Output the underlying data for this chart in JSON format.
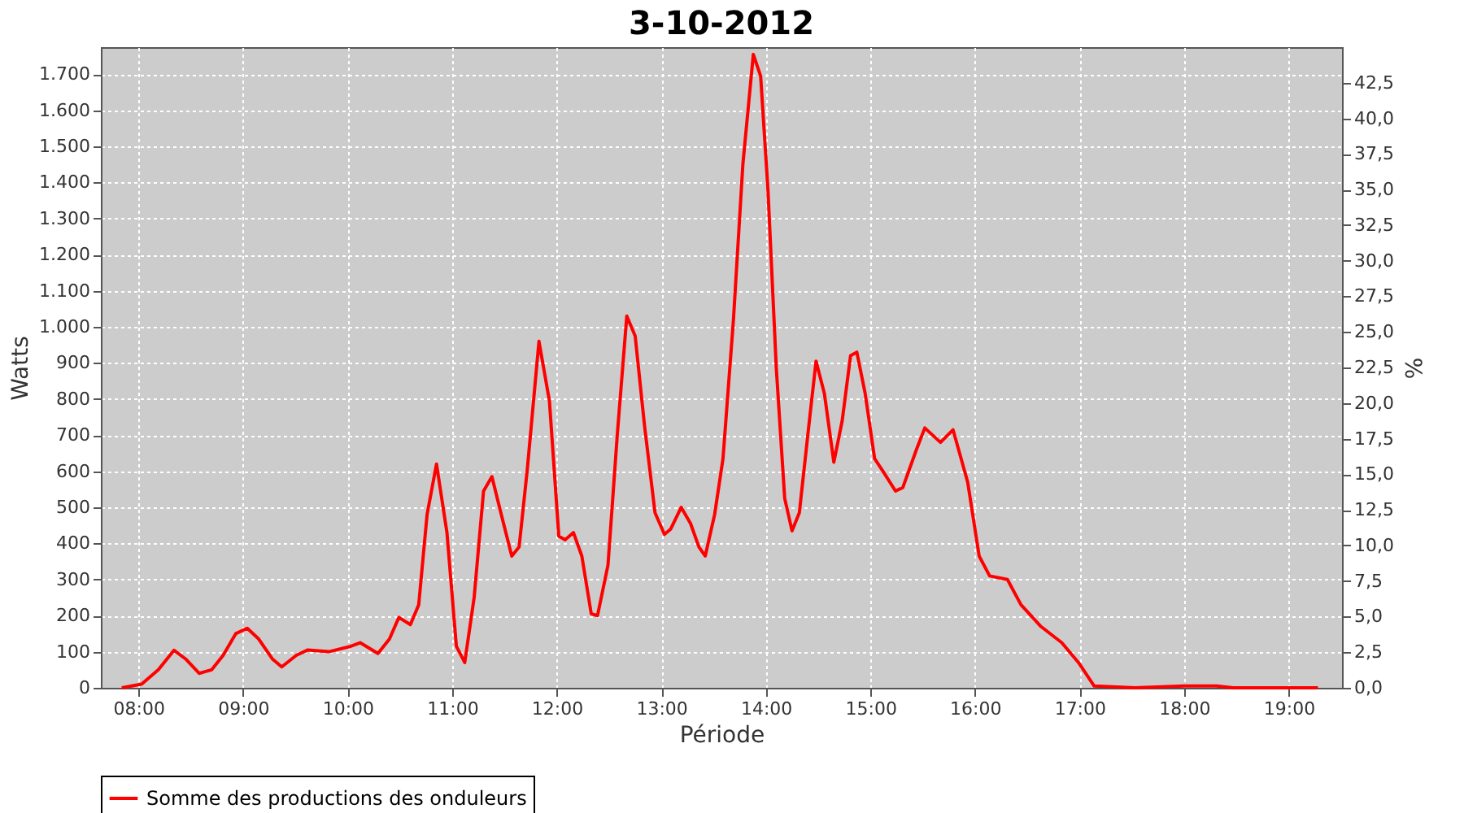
{
  "chart_data": {
    "type": "line",
    "title": "3-10-2012",
    "xlabel": "Période",
    "ylabel": "Watts",
    "y2label": "%",
    "x": [
      7.84,
      8.03,
      8.19,
      8.34,
      8.45,
      8.58,
      8.7,
      8.81,
      8.93,
      9.04,
      9.15,
      9.28,
      9.37,
      9.51,
      9.62,
      9.82,
      10.03,
      10.12,
      10.29,
      10.4,
      10.49,
      10.6,
      10.68,
      10.76,
      10.85,
      10.95,
      11.04,
      11.12,
      11.21,
      11.3,
      11.38,
      11.47,
      11.57,
      11.64,
      11.72,
      11.83,
      11.93,
      12.02,
      12.08,
      12.16,
      12.24,
      12.33,
      12.39,
      12.49,
      12.58,
      12.67,
      12.75,
      12.84,
      12.94,
      13.03,
      13.09,
      13.19,
      13.28,
      13.36,
      13.42,
      13.51,
      13.59,
      13.69,
      13.78,
      13.88,
      13.95,
      14.02,
      14.1,
      14.18,
      14.25,
      14.32,
      14.42,
      14.48,
      14.56,
      14.65,
      14.73,
      14.81,
      14.87,
      14.95,
      15.04,
      15.12,
      15.24,
      15.31,
      15.44,
      15.52,
      15.67,
      15.79,
      15.93,
      16.04,
      16.14,
      16.31,
      16.44,
      16.63,
      16.83,
      16.99,
      17.14,
      17.53,
      18.0,
      18.31,
      18.47,
      19.28
    ],
    "series": [
      {
        "name": "Somme des productions des onduleurs",
        "color": "#ff0000",
        "values": [
          0,
          10,
          50,
          104,
          80,
          40,
          50,
          90,
          150,
          165,
          135,
          80,
          58,
          90,
          105,
          100,
          115,
          125,
          95,
          135,
          195,
          175,
          230,
          480,
          620,
          430,
          115,
          70,
          250,
          545,
          585,
          480,
          365,
          390,
          610,
          960,
          795,
          420,
          410,
          430,
          365,
          205,
          200,
          340,
          705,
          1030,
          975,
          725,
          485,
          425,
          440,
          500,
          455,
          390,
          365,
          480,
          635,
          1020,
          1450,
          1755,
          1695,
          1380,
          885,
          525,
          435,
          485,
          750,
          905,
          815,
          625,
          740,
          920,
          930,
          815,
          635,
          600,
          545,
          555,
          660,
          720,
          680,
          715,
          570,
          365,
          310,
          300,
          230,
          170,
          125,
          70,
          5,
          0,
          5,
          5,
          0,
          0
        ]
      }
    ],
    "xlim": [
      7.64,
      19.51
    ],
    "xticks": [
      {
        "value": 8,
        "label": "08:00"
      },
      {
        "value": 9,
        "label": "09:00"
      },
      {
        "value": 10,
        "label": "10:00"
      },
      {
        "value": 11,
        "label": "11:00"
      },
      {
        "value": 12,
        "label": "12:00"
      },
      {
        "value": 13,
        "label": "13:00"
      },
      {
        "value": 14,
        "label": "14:00"
      },
      {
        "value": 15,
        "label": "15:00"
      },
      {
        "value": 16,
        "label": "16:00"
      },
      {
        "value": 17,
        "label": "17:00"
      },
      {
        "value": 18,
        "label": "18:00"
      },
      {
        "value": 19,
        "label": "19:00"
      }
    ],
    "ylim": [
      0,
      1775
    ],
    "yticks": [
      0,
      100,
      200,
      300,
      400,
      500,
      600,
      700,
      800,
      900,
      {
        "value": 1000,
        "label": "1.000"
      },
      {
        "value": 1100,
        "label": "1.100"
      },
      {
        "value": 1200,
        "label": "1.200"
      },
      {
        "value": 1300,
        "label": "1.300"
      },
      {
        "value": 1400,
        "label": "1.400"
      },
      {
        "value": 1500,
        "label": "1.500"
      },
      {
        "value": 1600,
        "label": "1.600"
      },
      {
        "value": 1700,
        "label": "1.700"
      }
    ],
    "y2lim": [
      0,
      45
    ],
    "y2ticks": [
      {
        "value": 0,
        "label": "0,0"
      },
      {
        "value": 2.5,
        "label": "2,5"
      },
      {
        "value": 5,
        "label": "5,0"
      },
      {
        "value": 7.5,
        "label": "7,5"
      },
      {
        "value": 10,
        "label": "10,0"
      },
      {
        "value": 12.5,
        "label": "12,5"
      },
      {
        "value": 15,
        "label": "15,0"
      },
      {
        "value": 17.5,
        "label": "17,5"
      },
      {
        "value": 20,
        "label": "20,0"
      },
      {
        "value": 22.5,
        "label": "22,5"
      },
      {
        "value": 25,
        "label": "25,0"
      },
      {
        "value": 27.5,
        "label": "27,5"
      },
      {
        "value": 30,
        "label": "30,0"
      },
      {
        "value": 32.5,
        "label": "32,5"
      },
      {
        "value": 35,
        "label": "35,0"
      },
      {
        "value": 37.5,
        "label": "37,5"
      },
      {
        "value": 40,
        "label": "40,0"
      },
      {
        "value": 42.5,
        "label": "42,5"
      }
    ],
    "grid": true,
    "legend": "bottom",
    "marker": "none",
    "line_style": "solid"
  }
}
